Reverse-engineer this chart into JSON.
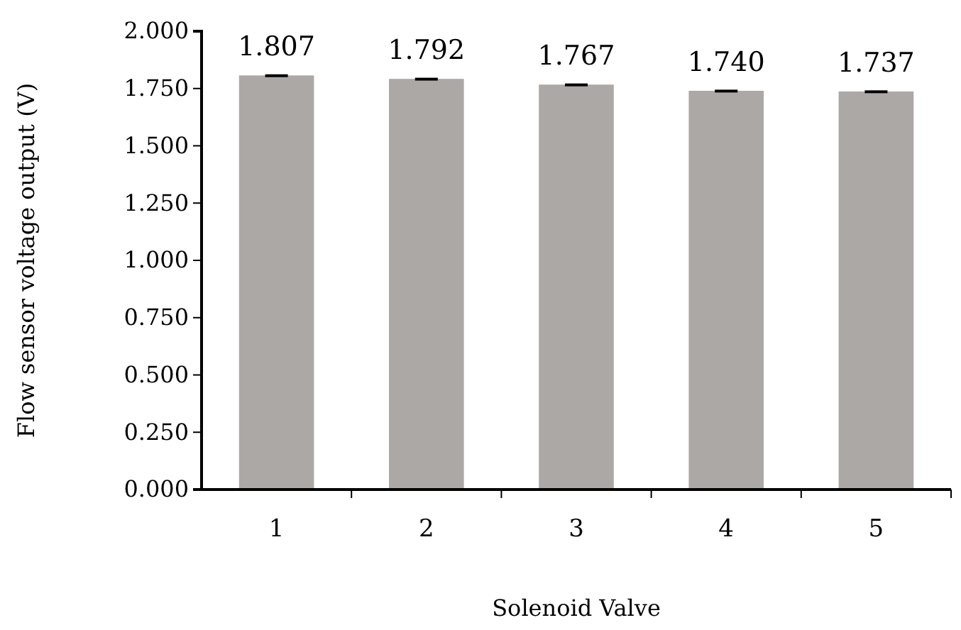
{
  "chart_data": {
    "type": "bar",
    "xlabel": "Solenoid Valve",
    "ylabel": "Flow sensor voltage output (V)",
    "categories": [
      "1",
      "2",
      "3",
      "4",
      "5"
    ],
    "values": [
      1.807,
      1.792,
      1.767,
      1.74,
      1.737
    ],
    "errors": [
      0.005,
      0.005,
      0.005,
      0.005,
      0.005
    ],
    "value_labels": [
      "1.807",
      "1.792",
      "1.767",
      "1.740",
      "1.737"
    ],
    "color": "#aca8a6",
    "grid": false,
    "ylim": [
      0,
      2
    ],
    "yticks": [
      {
        "value": 0,
        "label": "0.000"
      },
      {
        "value": 0.25,
        "label": "0.250"
      },
      {
        "value": 0.5,
        "label": "0.500"
      },
      {
        "value": 0.75,
        "label": "0.750"
      },
      {
        "value": 1,
        "label": "1.000"
      },
      {
        "value": 1.25,
        "label": "1.250"
      },
      {
        "value": 1.5,
        "label": "1.500"
      },
      {
        "value": 1.75,
        "label": "1.750"
      },
      {
        "value": 2,
        "label": "2.000"
      }
    ]
  }
}
